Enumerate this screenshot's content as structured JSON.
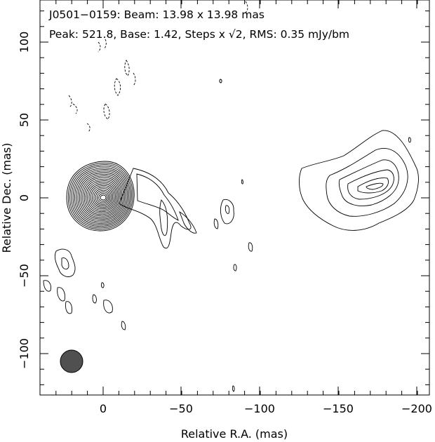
{
  "header": {
    "line1": "J0501−0159: Beam: 13.98 x 13.98 mas",
    "line2_prefix": "Peak: 521.8, Base: 1.42, Steps x ",
    "sqrt_symbol": "√",
    "sqrt_arg": "2",
    "line2_suffix": ", RMS: 0.35 mJy/bm"
  },
  "axes": {
    "xlabel": "Relative R.A. (mas)",
    "ylabel": "Relative Dec. (mas)",
    "x_ticks": [
      "0",
      "−50",
      "−100",
      "−150",
      "−200"
    ],
    "y_ticks": [
      "100",
      "50",
      "0",
      "−50",
      "−100"
    ]
  },
  "colors": {
    "beam_fill": "#505050",
    "contour": "#000000"
  }
}
